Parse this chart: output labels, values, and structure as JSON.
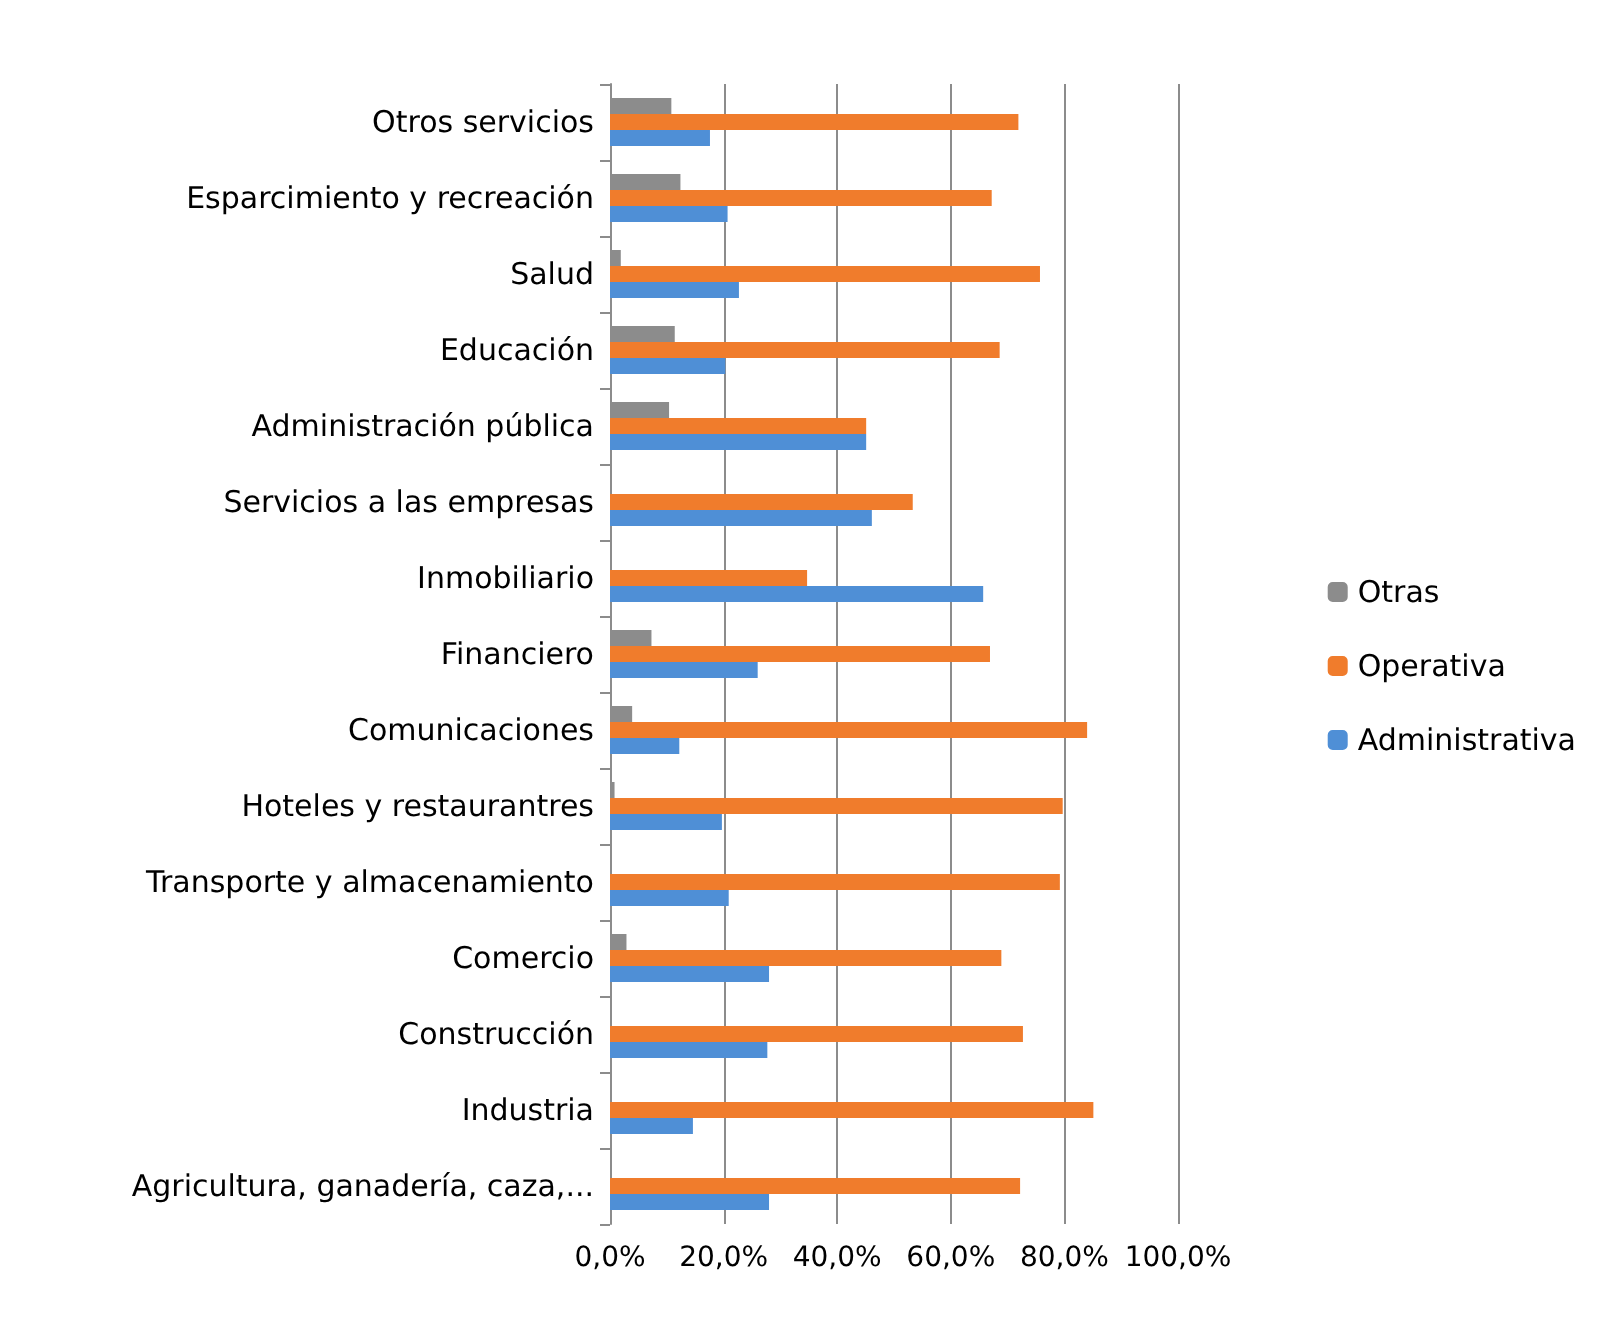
{
  "chart_data": {
    "type": "bar",
    "orientation": "horizontal",
    "categories": [
      "Otros servicios",
      "Esparcimiento y recreación",
      "Salud",
      "Educación",
      "Administración pública",
      "Servicios a las empresas",
      "Inmobiliario",
      "Financiero",
      "Comunicaciones",
      "Hoteles y restaurantres",
      "Transporte y almacenamiento",
      "Comercio",
      "Construcción",
      "Industria",
      "Agricultura, ganadería, caza,..."
    ],
    "series": [
      {
        "name": "Otras",
        "color": "#8c8c8c",
        "values": [
          10.8,
          12.4,
          1.9,
          11.4,
          10.4,
          0.3,
          0,
          7.3,
          3.9,
          0.8,
          0,
          2.9,
          0,
          0.3,
          0
        ]
      },
      {
        "name": "Operativa",
        "color": "#f07c2c",
        "values": [
          71.9,
          67.2,
          75.7,
          68.6,
          45.1,
          53.3,
          34.7,
          66.9,
          84.0,
          79.7,
          79.2,
          68.9,
          72.7,
          85.1,
          72.2
        ]
      },
      {
        "name": "Administrativa",
        "color": "#4f8fd6",
        "values": [
          17.6,
          20.7,
          22.7,
          20.3,
          45.1,
          46.1,
          65.7,
          26.0,
          12.2,
          19.7,
          20.9,
          28.0,
          27.7,
          14.6,
          28.0
        ]
      }
    ],
    "xlim": [
      0,
      100
    ],
    "xticks": [
      {
        "value": 0,
        "label": "0,0%"
      },
      {
        "value": 20,
        "label": "20,0%"
      },
      {
        "value": 40,
        "label": "40,0%"
      },
      {
        "value": 60,
        "label": "60,0%"
      },
      {
        "value": 80,
        "label": "80,0%"
      },
      {
        "value": 100,
        "label": "100,0%"
      }
    ],
    "grid": "x",
    "legend": "right"
  }
}
